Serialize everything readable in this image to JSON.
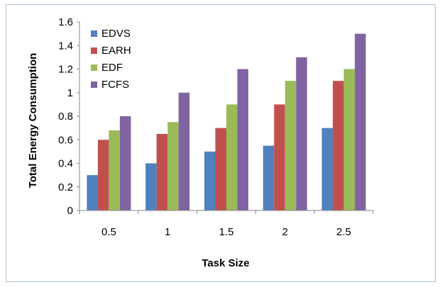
{
  "chart_data": {
    "type": "bar",
    "title": "",
    "xlabel": "Task Size",
    "ylabel": "Total Energy Consumption",
    "categories": [
      "0.5",
      "1",
      "1.5",
      "2",
      "2.5"
    ],
    "ylim": [
      0,
      1.6
    ],
    "yticks": [
      "0",
      "0.2",
      "0.4",
      "0.6",
      "0.8",
      "1",
      "1.2",
      "1.4",
      "1.6"
    ],
    "grid": false,
    "legend_position": "top-left",
    "series": [
      {
        "name": "EDVS",
        "color": "#4f81bd",
        "values": [
          0.3,
          0.4,
          0.5,
          0.55,
          0.7
        ]
      },
      {
        "name": "EARH",
        "color": "#c0504d",
        "values": [
          0.6,
          0.65,
          0.7,
          0.9,
          1.1
        ]
      },
      {
        "name": "EDF",
        "color": "#9bbb59",
        "values": [
          0.68,
          0.75,
          0.9,
          1.1,
          1.2
        ]
      },
      {
        "name": "FCFS",
        "color": "#8064a2",
        "values": [
          0.8,
          1.0,
          1.2,
          1.3,
          1.5
        ]
      }
    ]
  }
}
